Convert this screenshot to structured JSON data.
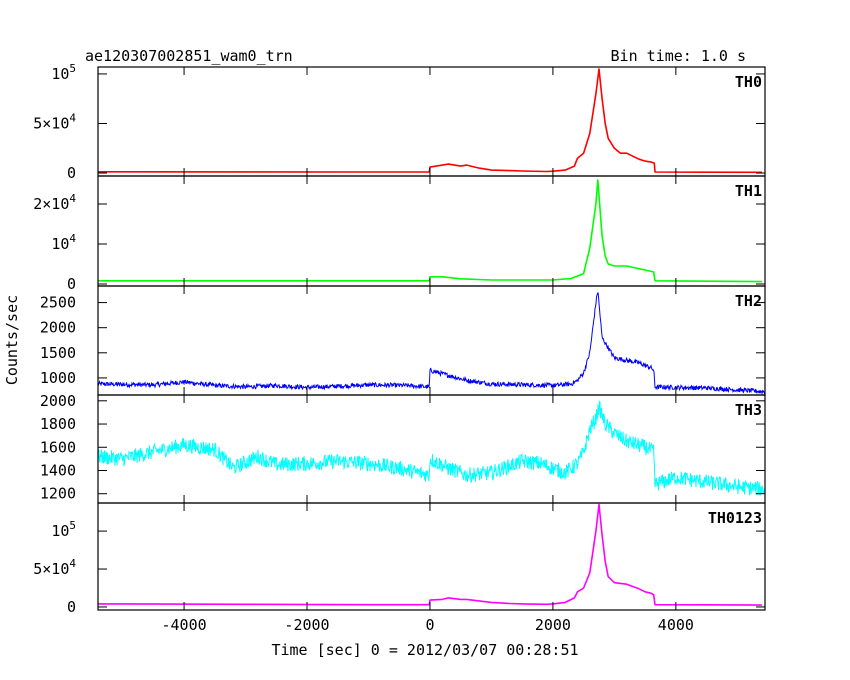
{
  "chart_data": {
    "type": "line",
    "title": "ae120307002851_wam0_trn",
    "subtitle": "Bin time: 1.0 s",
    "xlabel": "Time [sec] 0 = 2012/03/07 00:28:51",
    "ylabel": "Counts/sec",
    "xlim": [
      -5400,
      5450
    ],
    "x_ticks": [
      -4000,
      -2000,
      0,
      2000,
      4000
    ],
    "x_tick_labels": [
      "-4000",
      "-2000",
      "0",
      "2000",
      "4000"
    ],
    "grid": false,
    "panels": [
      {
        "name": "TH0",
        "color": "#ff0000",
        "ylim": [
          -3000,
          107000
        ],
        "ticks": [
          0,
          50000,
          100000
        ],
        "tick_labels": [
          {
            "text": "0",
            "mant": "",
            "exp": ""
          },
          {
            "text": "",
            "mant": "5×10",
            "exp": "4"
          },
          {
            "text": "",
            "mant": "10",
            "exp": "5"
          }
        ],
        "points": [
          [
            -5400,
            1200
          ],
          [
            -3000,
            1100
          ],
          [
            -1000,
            1000
          ],
          [
            -10,
            1000
          ],
          [
            0,
            6000
          ],
          [
            200,
            8000
          ],
          [
            300,
            9000
          ],
          [
            500,
            7000
          ],
          [
            600,
            8000
          ],
          [
            800,
            5000
          ],
          [
            1000,
            3000
          ],
          [
            1300,
            2500
          ],
          [
            1500,
            2000
          ],
          [
            1900,
            1500
          ],
          [
            2000,
            1800
          ],
          [
            2200,
            3000
          ],
          [
            2350,
            7000
          ],
          [
            2400,
            15000
          ],
          [
            2500,
            20000
          ],
          [
            2600,
            40000
          ],
          [
            2700,
            80000
          ],
          [
            2750,
            105000
          ],
          [
            2800,
            75000
          ],
          [
            2850,
            50000
          ],
          [
            2900,
            35000
          ],
          [
            3000,
            25000
          ],
          [
            3100,
            20000
          ],
          [
            3200,
            20000
          ],
          [
            3300,
            17000
          ],
          [
            3400,
            14000
          ],
          [
            3500,
            12000
          ],
          [
            3600,
            11000
          ],
          [
            3650,
            10000
          ],
          [
            3660,
            1000
          ],
          [
            4500,
            800
          ],
          [
            5400,
            700
          ]
        ],
        "noise": 0
      },
      {
        "name": "TH1",
        "color": "#00ff00",
        "ylim": [
          -500,
          27000
        ],
        "ticks": [
          0,
          10000,
          20000
        ],
        "tick_labels": [
          {
            "text": "0",
            "mant": "",
            "exp": ""
          },
          {
            "text": "",
            "mant": "10",
            "exp": "4"
          },
          {
            "text": "",
            "mant": "2×10",
            "exp": "4"
          }
        ],
        "points": [
          [
            -5400,
            800
          ],
          [
            -1000,
            800
          ],
          [
            -10,
            800
          ],
          [
            0,
            1800
          ],
          [
            200,
            1800
          ],
          [
            500,
            1300
          ],
          [
            1000,
            1000
          ],
          [
            2000,
            1000
          ],
          [
            2300,
            1400
          ],
          [
            2400,
            2000
          ],
          [
            2500,
            2600
          ],
          [
            2600,
            9000
          ],
          [
            2700,
            20000
          ],
          [
            2730,
            26000
          ],
          [
            2800,
            12000
          ],
          [
            2850,
            7000
          ],
          [
            2900,
            5000
          ],
          [
            3000,
            4500
          ],
          [
            3200,
            4500
          ],
          [
            3500,
            3500
          ],
          [
            3640,
            3000
          ],
          [
            3660,
            800
          ],
          [
            4500,
            700
          ],
          [
            5400,
            600
          ]
        ],
        "noise": 0
      },
      {
        "name": "TH2",
        "color": "#0000ff",
        "ylim": [
          660,
          2830
        ],
        "ticks": [
          1000,
          1500,
          2000,
          2500
        ],
        "tick_labels": [
          {
            "text": "1000",
            "mant": "",
            "exp": ""
          },
          {
            "text": "1500",
            "mant": "",
            "exp": ""
          },
          {
            "text": "2000",
            "mant": "",
            "exp": ""
          },
          {
            "text": "2500",
            "mant": "",
            "exp": ""
          }
        ],
        "points": [
          [
            -5400,
            880
          ],
          [
            -4500,
            860
          ],
          [
            -4000,
            920
          ],
          [
            -3500,
            850
          ],
          [
            -3000,
            820
          ],
          [
            -2500,
            850
          ],
          [
            -2000,
            810
          ],
          [
            -1000,
            860
          ],
          [
            -400,
            850
          ],
          [
            -10,
            820
          ],
          [
            0,
            1150
          ],
          [
            300,
            1050
          ],
          [
            600,
            950
          ],
          [
            1000,
            880
          ],
          [
            2000,
            850
          ],
          [
            2300,
            880
          ],
          [
            2400,
            950
          ],
          [
            2500,
            1100
          ],
          [
            2600,
            1500
          ],
          [
            2700,
            2500
          ],
          [
            2730,
            2750
          ],
          [
            2800,
            1800
          ],
          [
            2900,
            1600
          ],
          [
            3000,
            1400
          ],
          [
            3200,
            1350
          ],
          [
            3400,
            1300
          ],
          [
            3600,
            1200
          ],
          [
            3640,
            1150
          ],
          [
            3660,
            820
          ],
          [
            4500,
            800
          ],
          [
            5400,
            730
          ]
        ],
        "noise": 90
      },
      {
        "name": "TH3",
        "color": "#00ffff",
        "ylim": [
          1120,
          2050
        ],
        "ticks": [
          1200,
          1400,
          1600,
          1800,
          2000
        ],
        "tick_labels": [
          {
            "text": "1200",
            "mant": "",
            "exp": ""
          },
          {
            "text": "1400",
            "mant": "",
            "exp": ""
          },
          {
            "text": "1600",
            "mant": "",
            "exp": ""
          },
          {
            "text": "1800",
            "mant": "",
            "exp": ""
          },
          {
            "text": "2000",
            "mant": "",
            "exp": ""
          }
        ],
        "points": [
          [
            -5400,
            1520
          ],
          [
            -5000,
            1500
          ],
          [
            -4500,
            1560
          ],
          [
            -4000,
            1620
          ],
          [
            -3500,
            1580
          ],
          [
            -3200,
            1420
          ],
          [
            -2800,
            1520
          ],
          [
            -2500,
            1450
          ],
          [
            -2000,
            1460
          ],
          [
            -1500,
            1480
          ],
          [
            -1000,
            1460
          ],
          [
            -500,
            1420
          ],
          [
            -10,
            1360
          ],
          [
            0,
            1500
          ],
          [
            300,
            1420
          ],
          [
            600,
            1360
          ],
          [
            1000,
            1380
          ],
          [
            1500,
            1480
          ],
          [
            1800,
            1460
          ],
          [
            2000,
            1420
          ],
          [
            2200,
            1380
          ],
          [
            2400,
            1460
          ],
          [
            2500,
            1560
          ],
          [
            2600,
            1750
          ],
          [
            2700,
            1850
          ],
          [
            2750,
            1950
          ],
          [
            2850,
            1800
          ],
          [
            3000,
            1720
          ],
          [
            3200,
            1650
          ],
          [
            3500,
            1600
          ],
          [
            3640,
            1560
          ],
          [
            3660,
            1280
          ],
          [
            4000,
            1340
          ],
          [
            4500,
            1300
          ],
          [
            5000,
            1260
          ],
          [
            5400,
            1240
          ]
        ],
        "noise": 130
      },
      {
        "name": "TH0123",
        "color": "#ff00ff",
        "ylim": [
          -4000,
          137000
        ],
        "ticks": [
          0,
          50000,
          100000
        ],
        "tick_labels": [
          {
            "text": "0",
            "mant": "",
            "exp": ""
          },
          {
            "text": "",
            "mant": "5×10",
            "exp": "4"
          },
          {
            "text": "",
            "mant": "10",
            "exp": "5"
          }
        ],
        "points": [
          [
            -5400,
            4000
          ],
          [
            -3000,
            3500
          ],
          [
            -1000,
            3000
          ],
          [
            -10,
            3000
          ],
          [
            0,
            9000
          ],
          [
            200,
            10000
          ],
          [
            300,
            12000
          ],
          [
            500,
            10000
          ],
          [
            600,
            10000
          ],
          [
            800,
            8000
          ],
          [
            1000,
            6000
          ],
          [
            1300,
            4500
          ],
          [
            1500,
            4000
          ],
          [
            1900,
            3500
          ],
          [
            2000,
            4000
          ],
          [
            2200,
            6000
          ],
          [
            2350,
            12000
          ],
          [
            2400,
            20000
          ],
          [
            2500,
            25000
          ],
          [
            2600,
            45000
          ],
          [
            2700,
            100000
          ],
          [
            2750,
            135000
          ],
          [
            2800,
            95000
          ],
          [
            2850,
            60000
          ],
          [
            2900,
            40000
          ],
          [
            3000,
            32000
          ],
          [
            3200,
            30000
          ],
          [
            3300,
            27000
          ],
          [
            3400,
            24000
          ],
          [
            3500,
            20000
          ],
          [
            3600,
            18000
          ],
          [
            3640,
            16000
          ],
          [
            3660,
            3000
          ],
          [
            4500,
            2800
          ],
          [
            5400,
            2500
          ]
        ],
        "noise": 0
      }
    ]
  }
}
